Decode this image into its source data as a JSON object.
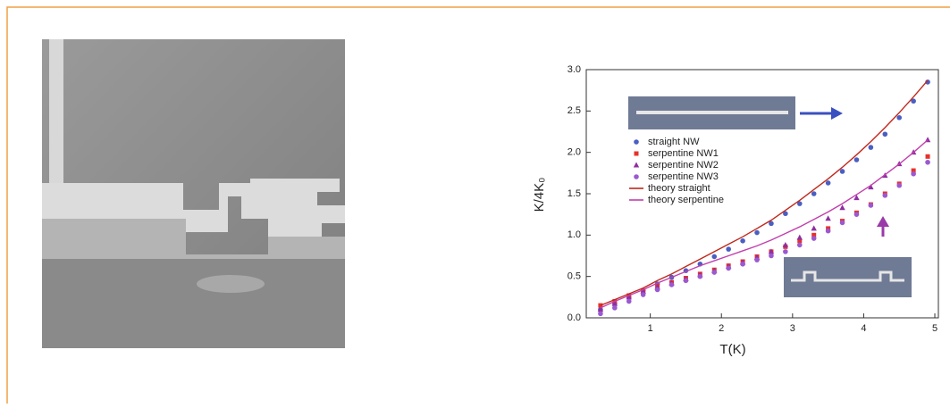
{
  "chart_data": {
    "type": "scatter",
    "x_label": "T(K)",
    "y_label": "K/4K₀",
    "x": [
      0.3,
      0.5,
      0.7,
      0.9,
      1.1,
      1.3,
      1.5,
      1.7,
      1.9,
      2.1,
      2.3,
      2.5,
      2.7,
      2.9,
      3.1,
      3.3,
      3.5,
      3.7,
      3.9,
      4.1,
      4.3,
      4.5,
      4.7,
      4.9
    ],
    "series": [
      {
        "name": "straight NW",
        "color": "#4a5fc1",
        "marker": "circle",
        "values": [
          0.1,
          0.17,
          0.25,
          0.33,
          0.41,
          0.49,
          0.57,
          0.65,
          0.74,
          0.83,
          0.93,
          1.03,
          1.14,
          1.26,
          1.38,
          1.5,
          1.63,
          1.77,
          1.91,
          2.06,
          2.22,
          2.42,
          2.62,
          2.85
        ]
      },
      {
        "name": "serpentine NW1",
        "color": "#e8302a",
        "marker": "square",
        "values": [
          0.15,
          0.2,
          0.27,
          0.33,
          0.38,
          0.43,
          0.48,
          0.53,
          0.58,
          0.63,
          0.68,
          0.74,
          0.8,
          0.86,
          0.93,
          1.0,
          1.08,
          1.17,
          1.27,
          1.37,
          1.5,
          1.62,
          1.78,
          1.95
        ]
      },
      {
        "name": "serpentine NW2",
        "color": "#8e2fa0",
        "marker": "triangle",
        "values": [
          0.1,
          0.17,
          0.25,
          0.32,
          0.37,
          0.42,
          0.47,
          0.52,
          0.57,
          0.62,
          0.67,
          0.73,
          0.8,
          0.88,
          0.97,
          1.08,
          1.2,
          1.33,
          1.45,
          1.58,
          1.72,
          1.86,
          2.0,
          2.15
        ]
      },
      {
        "name": "serpentine NW3",
        "color": "#9b59d0",
        "marker": "circle",
        "values": [
          0.05,
          0.12,
          0.2,
          0.28,
          0.34,
          0.4,
          0.45,
          0.5,
          0.55,
          0.6,
          0.65,
          0.7,
          0.75,
          0.8,
          0.88,
          0.96,
          1.05,
          1.15,
          1.25,
          1.36,
          1.48,
          1.6,
          1.74,
          1.88
        ]
      },
      {
        "name": "theory straight",
        "color": "#c0281c",
        "marker": "line",
        "values": [
          0.15,
          0.22,
          0.29,
          0.36,
          0.45,
          0.53,
          0.62,
          0.71,
          0.8,
          0.89,
          0.98,
          1.08,
          1.18,
          1.3,
          1.42,
          1.55,
          1.68,
          1.82,
          1.97,
          2.13,
          2.3,
          2.48,
          2.67,
          2.87
        ]
      },
      {
        "name": "theory serpentine",
        "color": "#c23fae",
        "marker": "line",
        "values": [
          0.12,
          0.2,
          0.27,
          0.34,
          0.42,
          0.49,
          0.56,
          0.63,
          0.69,
          0.75,
          0.81,
          0.87,
          0.94,
          1.02,
          1.1,
          1.19,
          1.28,
          1.38,
          1.49,
          1.6,
          1.73,
          1.86,
          2.0,
          2.15
        ]
      }
    ],
    "xlim": [
      0.1,
      5.05
    ],
    "ylim": [
      0,
      3.0
    ],
    "xticks": [
      1,
      2,
      3,
      4,
      5
    ],
    "yticks": [
      {
        "value": 0,
        "label": "0.0"
      },
      {
        "value": 0.5,
        "label": "0.5"
      },
      {
        "value": 1,
        "label": "1.0"
      },
      {
        "value": 1.5,
        "label": "1.5"
      },
      {
        "value": 2,
        "label": "2.0"
      },
      {
        "value": 2.5,
        "label": "2.5"
      },
      {
        "value": 3,
        "label": "3.0"
      }
    ]
  }
}
